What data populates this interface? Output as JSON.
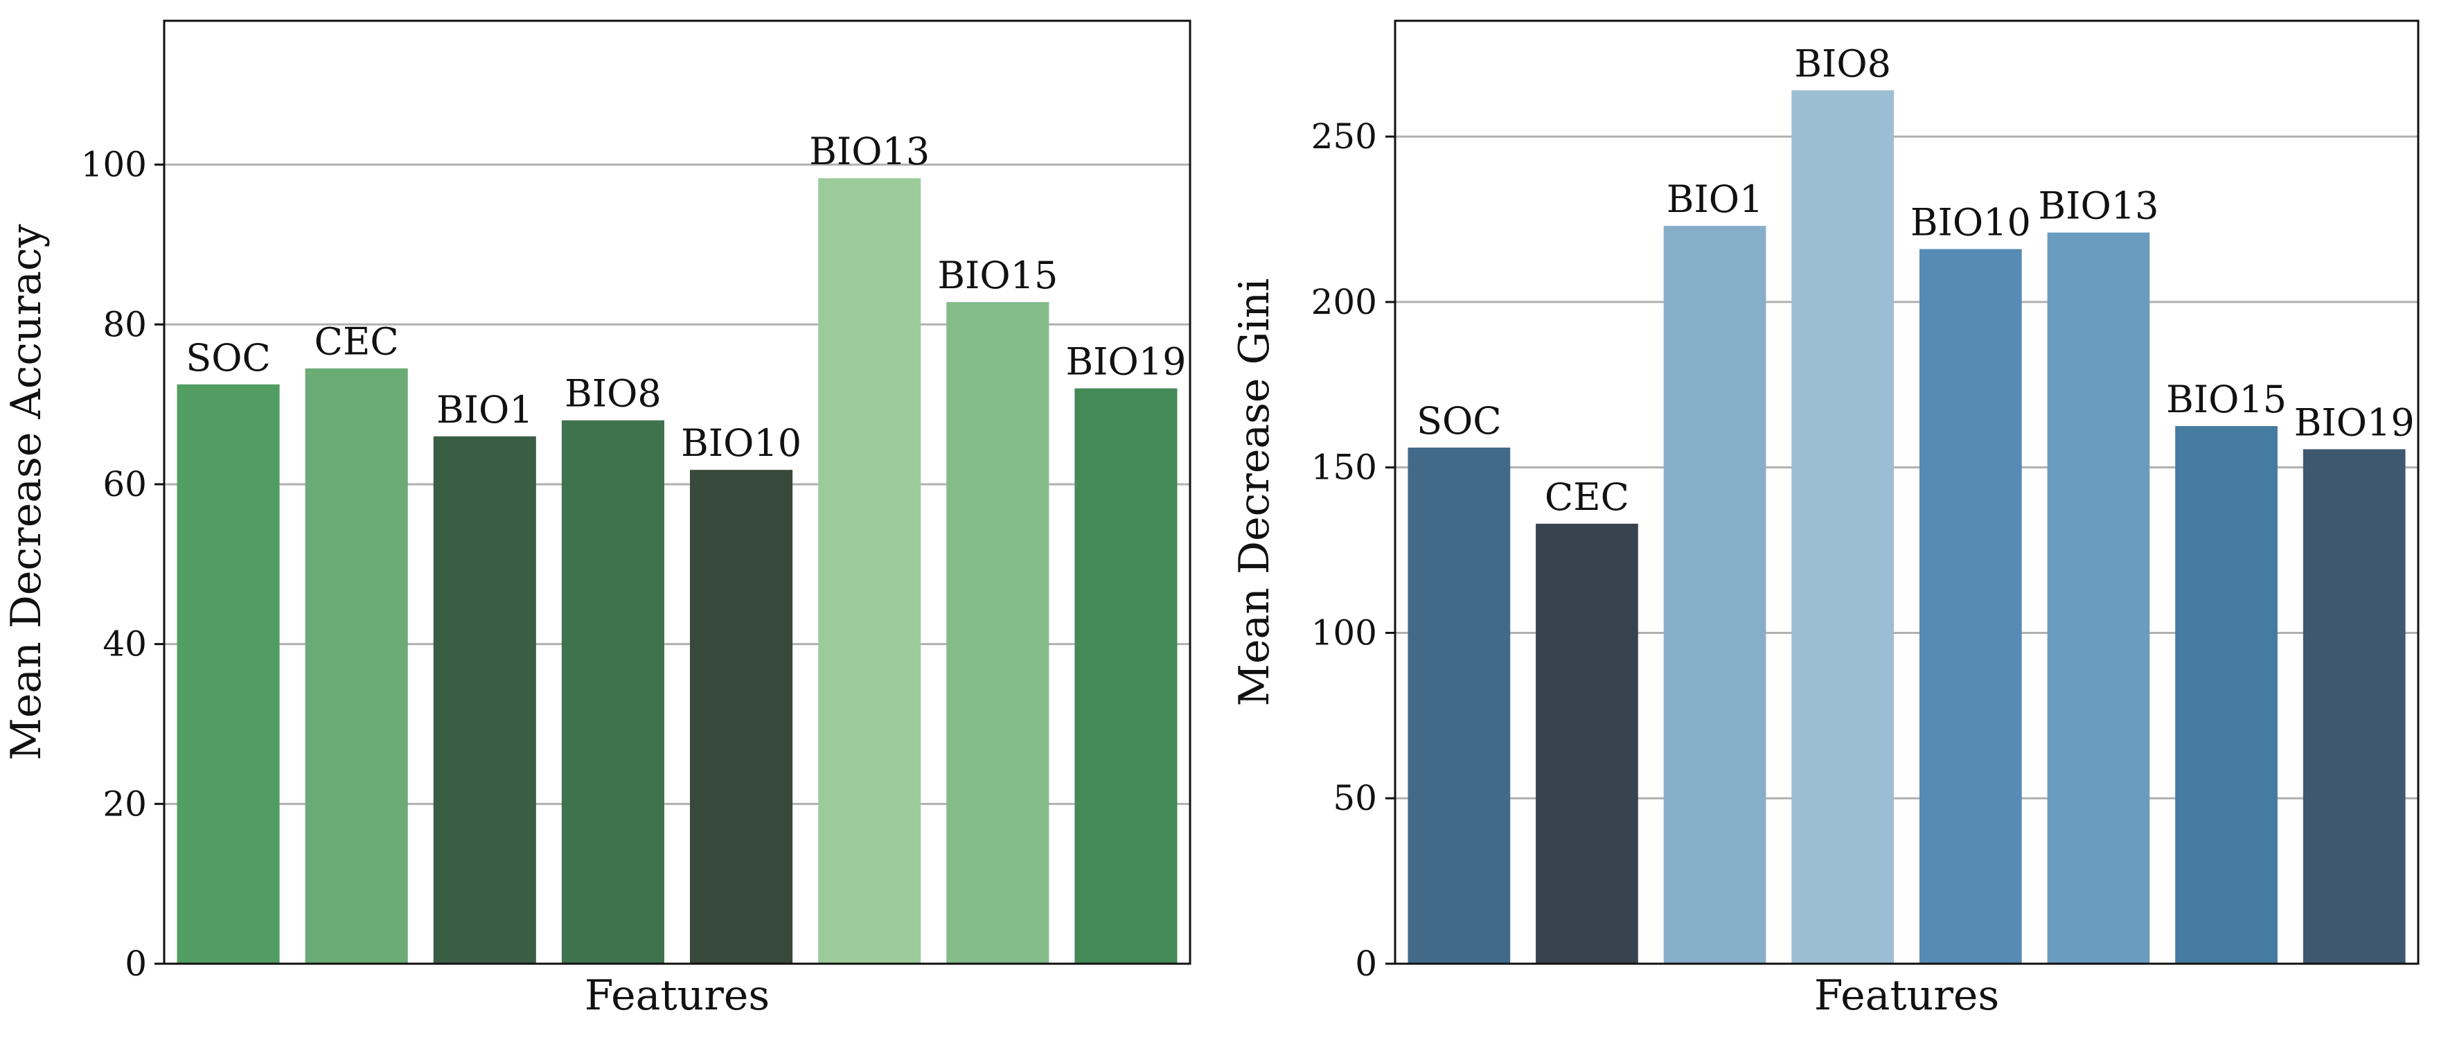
{
  "chart_data": [
    {
      "type": "bar",
      "categories": [
        "SOC",
        "CEC",
        "BIO1",
        "BIO8",
        "BIO10",
        "BIO13",
        "BIO15",
        "BIO19"
      ],
      "values": [
        72.5,
        74.5,
        66.0,
        68.0,
        61.8,
        98.3,
        82.8,
        72.0
      ],
      "data_labels": [
        "SOC",
        "CEC",
        "BIO1",
        "BIO8",
        "BIO10",
        "BIO13",
        "BIO15",
        "BIO19"
      ],
      "colors": [
        "#529e62",
        "#6bab75",
        "#3a5e44",
        "#3f734d",
        "#37493b",
        "#9ccb9a",
        "#84bc89",
        "#438a57"
      ],
      "xlabel": "Features",
      "ylabel": "Mean Decrease Accuracy",
      "ylim": [
        0,
        118
      ],
      "yticks": [
        0,
        20,
        40,
        60,
        80,
        100
      ],
      "grid": "y"
    },
    {
      "type": "bar",
      "categories": [
        "SOC",
        "CEC",
        "BIO1",
        "BIO8",
        "BIO10",
        "BIO13",
        "BIO15",
        "BIO19"
      ],
      "values": [
        156,
        133,
        223,
        264,
        216,
        221,
        162.5,
        155.5
      ],
      "data_labels": [
        "SOC",
        "CEC",
        "BIO1",
        "BIO8",
        "BIO10",
        "BIO13",
        "BIO15",
        "BIO19"
      ],
      "colors": [
        "#436988",
        "#37444f",
        "#87aec9",
        "#9bbed4",
        "#558bb4",
        "#6a9cc0",
        "#467ba1",
        "#3e5870"
      ],
      "xlabel": "Features",
      "ylabel": "Mean Decrease Gini",
      "ylim": [
        0,
        285
      ],
      "yticks": [
        0,
        50,
        100,
        150,
        200,
        250
      ],
      "grid": "y"
    }
  ]
}
